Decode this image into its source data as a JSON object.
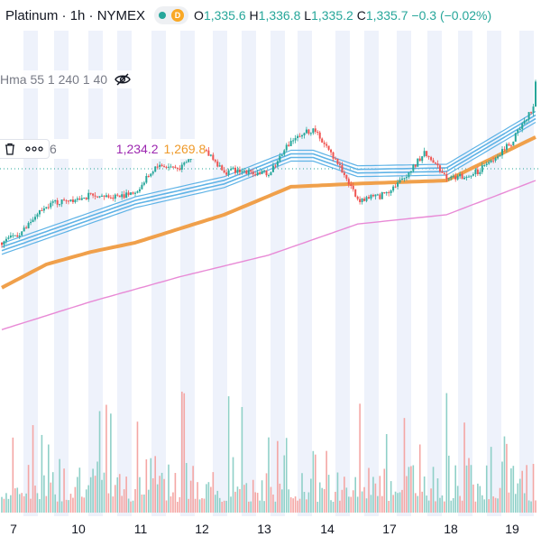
{
  "header": {
    "symbol": "Platinum · 1h · NYMEX",
    "market_badge": "D",
    "open_label": "O",
    "open": "1,335.6",
    "high_label": "H",
    "high": "1,336.8",
    "low_label": "L",
    "low": "1,335.2",
    "close_label": "C",
    "close": "1,335.7",
    "change": "−0.3 (−0.02%)"
  },
  "indicator_row": {
    "label": "Hma 55 1 240 1 40",
    "visibility_icon": "eye-crossed-icon"
  },
  "toolbar": {
    "delete_icon": "trash-icon",
    "more_icon": "more-dots-icon",
    "fragment": "6",
    "value1": "1,234.2",
    "value2": "1,269.8"
  },
  "colors": {
    "up": "#26a69a",
    "down": "#ef5350",
    "hma_lines": "#5fb3e6",
    "orange_ma": "#f0a04b",
    "pink_ma": "#e88ad6",
    "session_band": "#eef2fb"
  },
  "chart_data": {
    "type": "line",
    "title": "Platinum · 1h · NYMEX",
    "x_tick_labels": [
      "7",
      "10",
      "11",
      "12",
      "13",
      "14",
      "17",
      "18",
      "19"
    ],
    "ylim": [
      1150,
      1365
    ],
    "last_close": 1335.7,
    "series": [
      {
        "name": "Price",
        "x": [
          0,
          10,
          20,
          30,
          40,
          50,
          60,
          70,
          80,
          90,
          100,
          110,
          120,
          130,
          140,
          150,
          160,
          170,
          180,
          190,
          200,
          210,
          220,
          230,
          240
        ],
        "values": [
          1232,
          1240,
          1256,
          1260,
          1262,
          1262,
          1264,
          1282,
          1280,
          1294,
          1278,
          1278,
          1276,
          1298,
          1305,
          1286,
          1260,
          1262,
          1272,
          1290,
          1275,
          1274,
          1284,
          1298,
          1322
        ]
      },
      {
        "name": "Hma 55",
        "x": [
          0,
          60,
          100,
          130,
          140,
          160,
          200,
          240
        ],
        "values": [
          1228,
          1258,
          1271,
          1288,
          1288,
          1278,
          1279,
          1313
        ]
      },
      {
        "name": "1,269.8",
        "x": [
          0,
          20,
          40,
          60,
          100,
          130,
          160,
          200,
          240
        ],
        "values": [
          1203,
          1218,
          1226,
          1232,
          1250,
          1268,
          1270,
          1272,
          1300
        ]
      },
      {
        "name": "1,234.2",
        "x": [
          0,
          40,
          80,
          120,
          160,
          200,
          240
        ],
        "values": [
          1176,
          1194,
          1210,
          1224,
          1244,
          1250,
          1272
        ]
      }
    ],
    "volume_scale_max": 100
  },
  "x_axis": {
    "labels": [
      "7",
      "10",
      "11",
      "12",
      "13",
      "14",
      "17",
      "18",
      "19"
    ]
  }
}
